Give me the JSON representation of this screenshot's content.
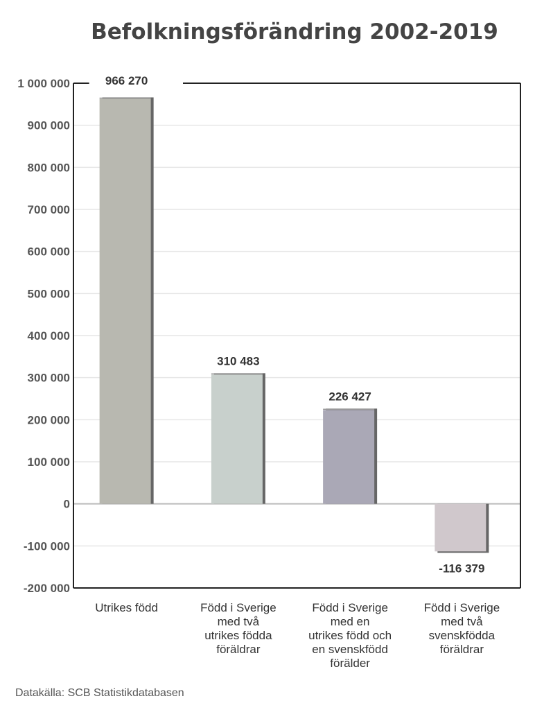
{
  "chart_data": {
    "type": "bar",
    "title": "Befolkningsförändring 2002-2019",
    "categories": [
      [
        "Utrikes född"
      ],
      [
        "Född i Sverige",
        "med två",
        "utrikes födda",
        "föräldrar"
      ],
      [
        "Född i Sverige",
        "med en",
        "utrikes född och",
        "en svenskfödd",
        "förälder"
      ],
      [
        "Född i Sverige",
        "med två",
        "svenskfödda",
        "föräldrar"
      ]
    ],
    "values": [
      966270,
      310483,
      226427,
      -116379
    ],
    "value_labels": [
      "966 270",
      "310 483",
      "226 427",
      "-116 379"
    ],
    "colors": [
      "#b8b8b0",
      "#c8d0cc",
      "#aaa8b6",
      "#d0c8cc"
    ],
    "ylim": [
      -200000,
      1000000
    ],
    "yticks": [
      1000000,
      900000,
      800000,
      700000,
      600000,
      500000,
      400000,
      300000,
      200000,
      100000,
      0,
      -100000,
      -200000
    ],
    "ytick_labels": [
      "1 000 000",
      "900 000",
      "800 000",
      "700 000",
      "600 000",
      "500 000",
      "400 000",
      "300 000",
      "200 000",
      "100 000",
      "0",
      "-100 000",
      "-200 000"
    ],
    "xlabel": "",
    "ylabel": "",
    "grid": true,
    "source": "Datakälla: SCB Statistikdatabasen"
  }
}
